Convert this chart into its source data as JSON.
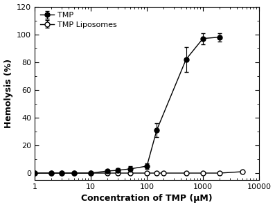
{
  "tmp_x": [
    1,
    2,
    3,
    5,
    10,
    20,
    30,
    50,
    100,
    150,
    500,
    1000,
    2000
  ],
  "tmp_y": [
    0,
    0,
    0,
    0,
    0,
    1.5,
    2,
    3,
    5,
    31,
    82,
    97,
    98
  ],
  "tmp_yerr": [
    0,
    0,
    0,
    0,
    0,
    1.0,
    1.5,
    2,
    2,
    5,
    9,
    4,
    3
  ],
  "lipo_x": [
    1,
    2,
    3,
    5,
    10,
    20,
    30,
    50,
    100,
    150,
    200,
    500,
    1000,
    2000,
    5000
  ],
  "lipo_y": [
    0,
    0,
    0,
    0,
    0,
    0,
    0,
    0,
    0,
    0,
    0,
    0,
    0,
    0,
    1
  ],
  "lipo_yerr": [
    0,
    0,
    0,
    0,
    0,
    0,
    0,
    0,
    0,
    0,
    0,
    0,
    0,
    0,
    0.3
  ],
  "xlabel": "Concentration of TMP (μM)",
  "ylabel": "Hemolysis (%)",
  "xlim": [
    1,
    10000
  ],
  "ylim": [
    -5,
    120
  ],
  "yticks": [
    0,
    20,
    40,
    60,
    80,
    100,
    120
  ],
  "xticks": [
    1,
    10,
    100,
    1000,
    10000
  ],
  "xticklabels": [
    "1",
    "10",
    "100",
    "1000",
    "10000"
  ],
  "tmp_color": "#000000",
  "lipo_color": "#000000",
  "background_color": "#ffffff",
  "legend_tmp": "TMP",
  "legend_lipo": "TMP Liposomes",
  "markersize": 5,
  "linewidth": 1.0,
  "elinewidth": 0.8,
  "capsize": 2,
  "xlabel_fontsize": 9,
  "ylabel_fontsize": 9,
  "tick_fontsize": 8,
  "legend_fontsize": 8
}
